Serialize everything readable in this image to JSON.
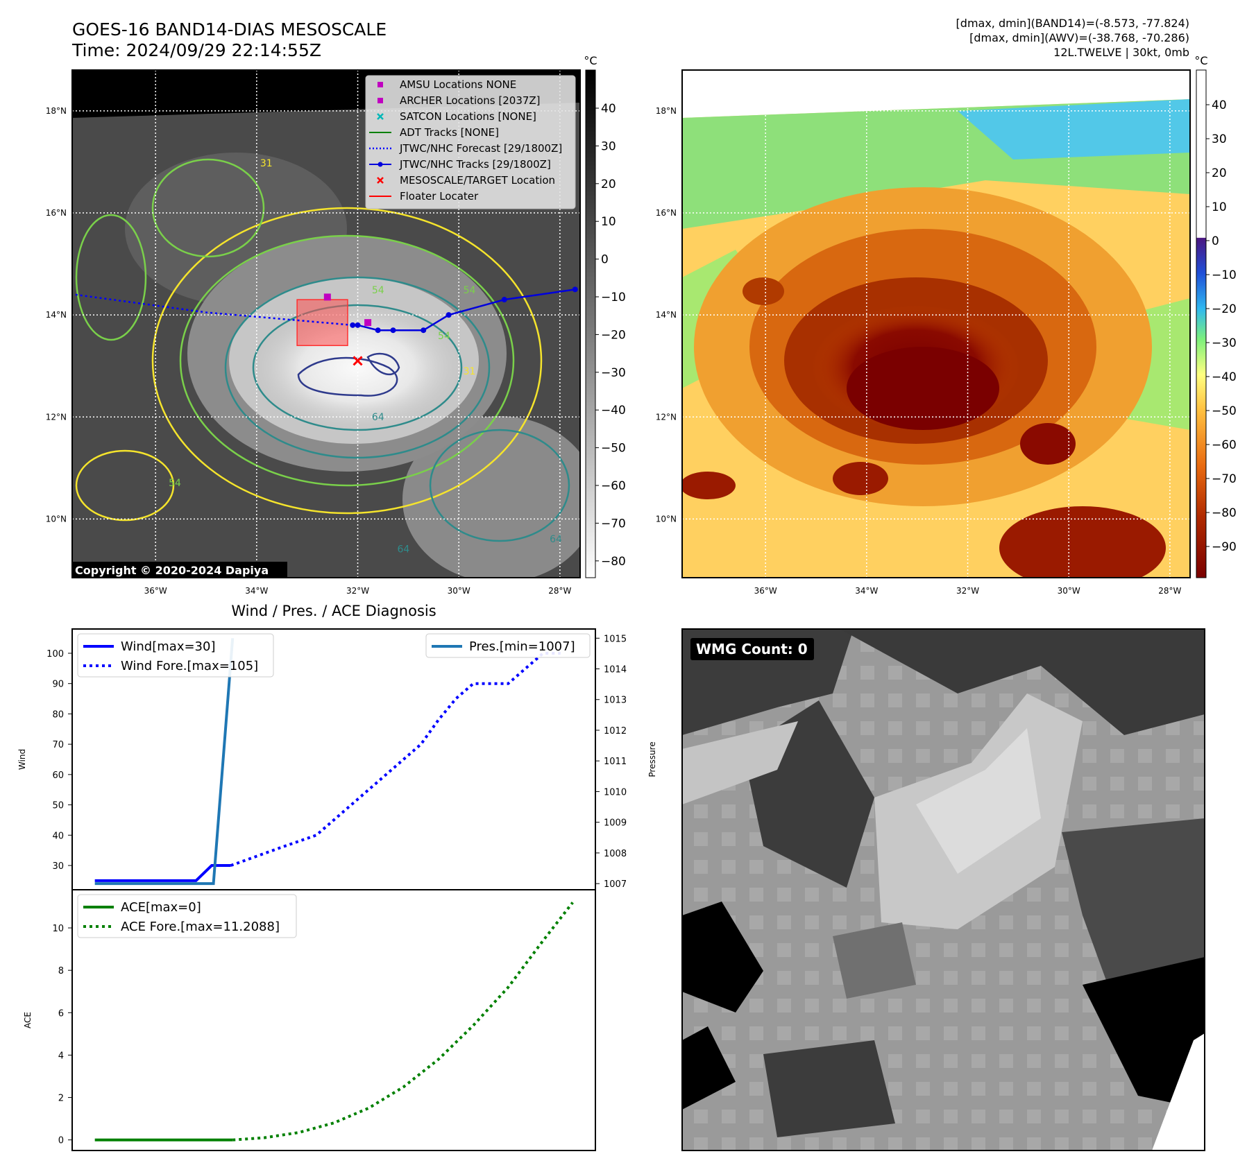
{
  "header": {
    "title_line1": "GOES-16 BAND14-DIAS MESOSCALE",
    "title_line2": "Time: 2024/09/29 22:14:55Z",
    "info_line1": "[dmax, dmin](BAND14)=(-8.573, -77.824)",
    "info_line2": "[dmax, dmin](AWV)=(-38.768, -70.286)",
    "info_line3": "12L.TWELVE | 30kt, 0mb"
  },
  "map_axes": {
    "lat_labels": [
      "18°N",
      "16°N",
      "14°N",
      "12°N",
      "10°N"
    ],
    "lon_labels": [
      "36°W",
      "34°W",
      "32°W",
      "30°W",
      "28°W"
    ]
  },
  "ir_map": {
    "copyright": "Copyright © 2020-2024 Dapiya",
    "contour_labels": [
      "31",
      "54",
      "54",
      "54",
      "54",
      "64",
      "64",
      "64",
      "31"
    ],
    "legend": [
      {
        "label": "AMSU Locations NONE",
        "color": "#c000c0",
        "kind": "square"
      },
      {
        "label": "ARCHER Locations [2037Z]",
        "color": "#c000c0",
        "kind": "square"
      },
      {
        "label": "SATCON Locations [NONE]",
        "color": "#00b8b8",
        "kind": "x"
      },
      {
        "label": "ADT Tracks [NONE]",
        "color": "#008000",
        "kind": "line"
      },
      {
        "label": "JTWC/NHC Forecast [29/1800Z]",
        "color": "#0000ff",
        "kind": "dotted"
      },
      {
        "label": "JTWC/NHC Tracks [29/1800Z]",
        "color": "#0000dd",
        "kind": "line-dot"
      },
      {
        "label": "MESOSCALE/TARGET Location",
        "color": "#ff0000",
        "kind": "x"
      },
      {
        "label": "Floater Locater",
        "color": "#ff0000",
        "kind": "line"
      }
    ],
    "colorbar": {
      "unit": "°C",
      "ticks": [
        "40",
        "30",
        "20",
        "10",
        "0",
        "−10",
        "−20",
        "−30",
        "−40",
        "−50",
        "−60",
        "−70",
        "−80"
      ]
    },
    "track_points": [
      [
        -27.7,
        14.5
      ],
      [
        -29.1,
        14.3
      ],
      [
        -30.2,
        14.0
      ],
      [
        -30.7,
        13.7
      ],
      [
        -31.3,
        13.7
      ],
      [
        -31.6,
        13.7
      ],
      [
        -32.0,
        13.8
      ],
      [
        -32.1,
        13.8
      ]
    ],
    "forecast_track": [
      [
        -32.1,
        13.8
      ],
      [
        -35.0,
        14.05
      ],
      [
        -37.6,
        14.4
      ]
    ],
    "archer_points": [
      [
        -32.6,
        14.35
      ],
      [
        -31.8,
        13.85
      ]
    ],
    "target_point": [
      -32.0,
      13.1
    ],
    "floater_box": {
      "lon": [
        -33.2,
        -32.2
      ],
      "lat": [
        13.4,
        14.3
      ]
    }
  },
  "awv_map": {
    "colorbar": {
      "unit": "°C",
      "ticks": [
        "40",
        "30",
        "20",
        "10",
        "0",
        "−10",
        "−20",
        "−30",
        "−40",
        "−50",
        "−60",
        "−70",
        "−80",
        "−90"
      ]
    }
  },
  "wmg": {
    "label": "WMG Count: 0"
  },
  "chart_data": [
    {
      "type": "line",
      "title": "Wind / Pres. / ACE Diagnosis",
      "ylabel": "Wind",
      "ylabel_right": "Pressure",
      "xlim": [
        0,
        30
      ],
      "ylim": [
        22,
        108
      ],
      "ylim_right": [
        1006.8,
        1015.3
      ],
      "yticks": [
        30,
        40,
        50,
        60,
        70,
        80,
        90,
        100
      ],
      "yticks_right": [
        1007,
        1008,
        1009,
        1010,
        1011,
        1012,
        1013,
        1014,
        1015
      ],
      "series": [
        {
          "name": "Wind[max=30]",
          "axis": "left",
          "style": "solid",
          "color": "#0000ff",
          "x": [
            1.3,
            7.1,
            8.0,
            9.1
          ],
          "y": [
            25,
            25,
            30,
            30
          ]
        },
        {
          "name": "Wind Fore.[max=105]",
          "axis": "left",
          "style": "dotted",
          "color": "#0000ff",
          "x": [
            9.1,
            12.0,
            13.0,
            14.0,
            15.0,
            16.0,
            17.0,
            18.0,
            19.0,
            20.0,
            21.0,
            22.0,
            23.0,
            24.0,
            25.0,
            26.0,
            27.0,
            28.0
          ],
          "y": [
            30,
            36,
            38,
            40,
            45,
            50,
            55,
            60,
            65,
            70,
            78,
            85,
            90,
            90,
            90,
            95,
            100,
            100
          ]
        },
        {
          "name": "Pres.[min=1007]",
          "axis": "right",
          "style": "solid",
          "color": "#1f77b4",
          "x": [
            1.3,
            8.1,
            9.2
          ],
          "y": [
            1007,
            1007,
            1015
          ]
        }
      ]
    },
    {
      "type": "line",
      "ylabel": "ACE",
      "xlim": [
        0,
        30
      ],
      "ylim": [
        -0.5,
        11.8
      ],
      "yticks": [
        0,
        2,
        4,
        6,
        8,
        10
      ],
      "series": [
        {
          "name": "ACE[max=0]",
          "style": "solid",
          "color": "#008000",
          "x": [
            1.3,
            9.2
          ],
          "y": [
            0,
            0
          ]
        },
        {
          "name": "ACE Fore.[max=11.2088]",
          "style": "dotted",
          "color": "#008000",
          "x": [
            9.2,
            11.0,
            13.0,
            15.0,
            17.0,
            19.0,
            21.0,
            23.0,
            25.0,
            27.0,
            28.7
          ],
          "y": [
            0,
            0.1,
            0.35,
            0.8,
            1.5,
            2.5,
            3.8,
            5.4,
            7.2,
            9.4,
            11.2
          ]
        }
      ]
    }
  ]
}
